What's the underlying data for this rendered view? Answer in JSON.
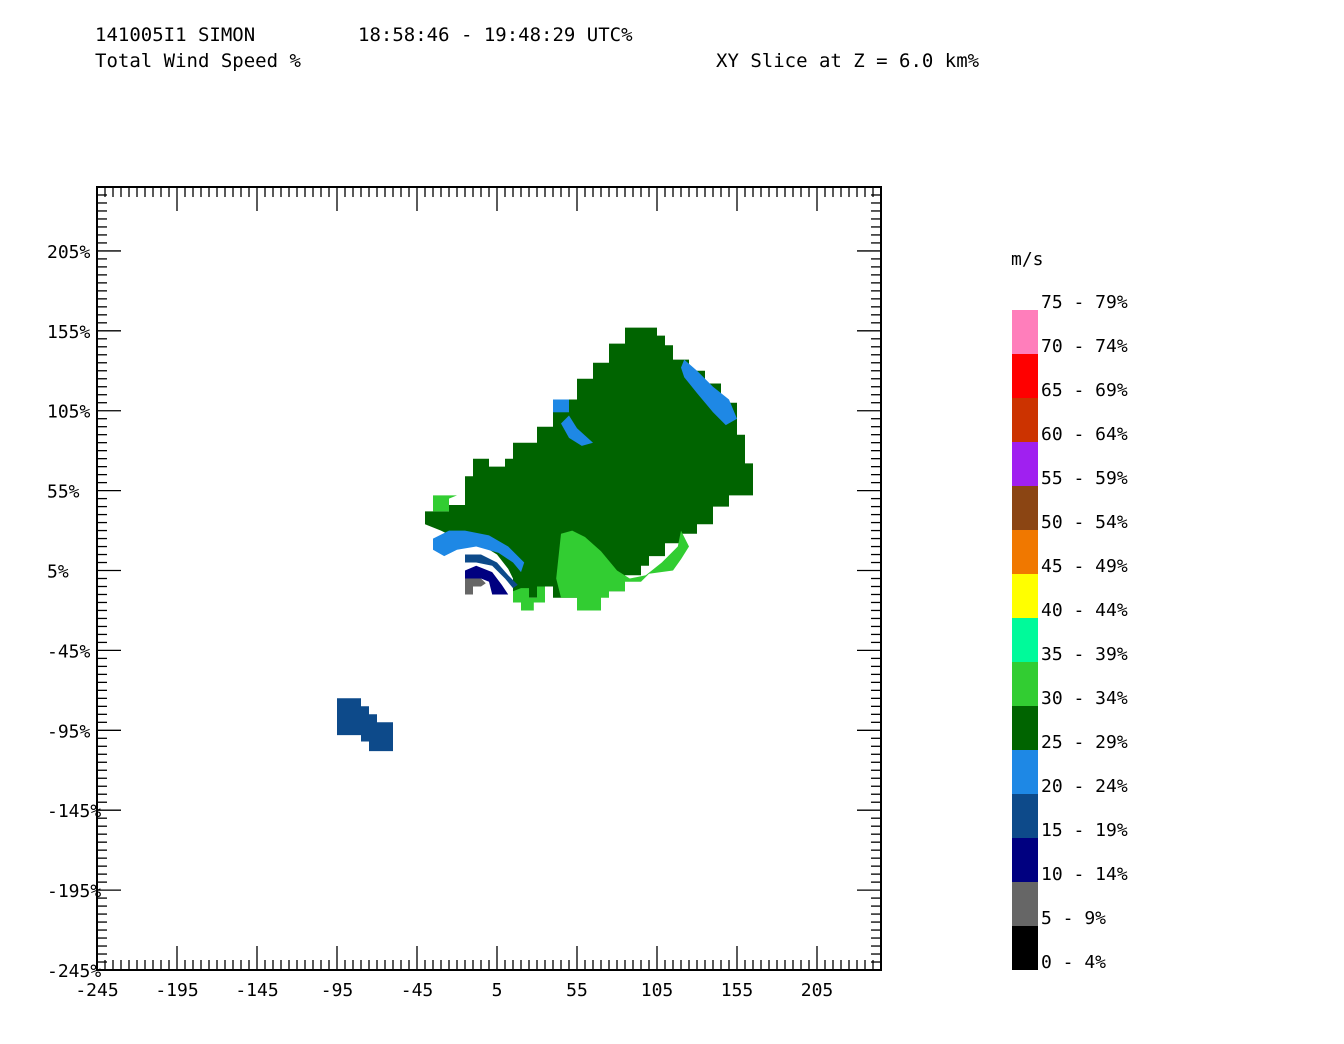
{
  "header": {
    "flight_id": "141005I1 SIMON",
    "time_range": "18:58:46 - 19:48:29 UTC%",
    "field_name": "Total Wind Speed %",
    "slice_label": "XY Slice at Z = 6.0 km%"
  },
  "chart_data": {
    "type": "heatmap",
    "title": "Total Wind Speed %",
    "xlabel": "",
    "ylabel": "",
    "xlim": [
      -245,
      245
    ],
    "ylim": [
      -245,
      245
    ],
    "x_ticks": [
      "-245",
      "-195",
      "-145",
      "-95",
      "-45",
      "5",
      "55",
      "105",
      "155",
      "205"
    ],
    "y_ticks": [
      "205%",
      "155%",
      "105%",
      "55%",
      "5%",
      "-45%",
      "-95%",
      "-145%",
      "-195%",
      "-245%"
    ],
    "x_tick_values": [
      -245,
      -195,
      -145,
      -95,
      -45,
      5,
      55,
      105,
      155,
      205
    ],
    "y_tick_values": [
      205,
      155,
      105,
      55,
      5,
      -45,
      -95,
      -145,
      -195,
      -245
    ],
    "grid": false,
    "legend": {
      "title": "m/s",
      "placement": "right",
      "bins": [
        {
          "label": "75 - 79%",
          "color": "#ff7ebb"
        },
        {
          "label": "70 - 74%",
          "color": "#ff0000"
        },
        {
          "label": "65 - 69%",
          "color": "#cc3300"
        },
        {
          "label": "60 - 64%",
          "color": "#a020f0"
        },
        {
          "label": "55 - 59%",
          "color": "#8b4513"
        },
        {
          "label": "50 - 54%",
          "color": "#f07800"
        },
        {
          "label": "45 - 49%",
          "color": "#ffff00"
        },
        {
          "label": "40 - 44%",
          "color": "#00fa9a"
        },
        {
          "label": "35 - 39%",
          "color": "#32cd32"
        },
        {
          "label": "30 - 34%",
          "color": "#006400"
        },
        {
          "label": "25 - 29%",
          "color": "#1e88e5"
        },
        {
          "label": "20 - 24%",
          "color": "#0d4a8a"
        },
        {
          "label": "15 - 19%",
          "color": "#000080"
        },
        {
          "label": "10 - 14%",
          "color": "#666666"
        },
        {
          "label": "5 - 9%",
          "color": "#000000"
        },
        {
          "label": "0 - 4%",
          "color": null
        }
      ]
    },
    "regions": [
      {
        "name": "main-25-29",
        "color": "#006400",
        "points": [
          [
            -40,
            34
          ],
          [
            -40,
            42
          ],
          [
            -25,
            42
          ],
          [
            -25,
            46
          ],
          [
            -15,
            46
          ],
          [
            -15,
            64
          ],
          [
            -10,
            64
          ],
          [
            -10,
            75
          ],
          [
            0,
            75
          ],
          [
            0,
            70
          ],
          [
            10,
            70
          ],
          [
            10,
            75
          ],
          [
            15,
            75
          ],
          [
            15,
            85
          ],
          [
            30,
            85
          ],
          [
            30,
            95
          ],
          [
            40,
            95
          ],
          [
            40,
            106
          ],
          [
            45,
            106
          ],
          [
            45,
            112
          ],
          [
            55,
            112
          ],
          [
            55,
            125
          ],
          [
            65,
            125
          ],
          [
            65,
            135
          ],
          [
            75,
            135
          ],
          [
            75,
            147
          ],
          [
            85,
            147
          ],
          [
            85,
            157
          ],
          [
            105,
            157
          ],
          [
            105,
            152
          ],
          [
            110,
            152
          ],
          [
            110,
            146
          ],
          [
            115,
            146
          ],
          [
            115,
            137
          ],
          [
            125,
            137
          ],
          [
            125,
            130
          ],
          [
            135,
            130
          ],
          [
            135,
            122
          ],
          [
            145,
            122
          ],
          [
            145,
            110
          ],
          [
            155,
            110
          ],
          [
            155,
            90
          ],
          [
            160,
            90
          ],
          [
            160,
            72
          ],
          [
            165,
            72
          ],
          [
            165,
            52
          ],
          [
            150,
            52
          ],
          [
            150,
            45
          ],
          [
            140,
            45
          ],
          [
            140,
            34
          ],
          [
            130,
            34
          ],
          [
            130,
            28
          ],
          [
            120,
            28
          ],
          [
            120,
            22
          ],
          [
            110,
            22
          ],
          [
            110,
            14
          ],
          [
            100,
            14
          ],
          [
            100,
            8
          ],
          [
            95,
            8
          ],
          [
            95,
            2
          ],
          [
            85,
            2
          ],
          [
            85,
            -8
          ],
          [
            70,
            -8
          ],
          [
            70,
            -20
          ],
          [
            55,
            -20
          ],
          [
            55,
            -12
          ],
          [
            40,
            -12
          ],
          [
            40,
            -5
          ],
          [
            30,
            -5
          ],
          [
            30,
            -12
          ],
          [
            15,
            -12
          ],
          [
            15,
            0
          ],
          [
            12,
            6
          ],
          [
            5,
            15
          ],
          [
            -8,
            23
          ],
          [
            -20,
            25
          ],
          [
            -30,
            30
          ]
        ]
      },
      {
        "name": "green-30-34-left",
        "color": "#32cd32",
        "points": [
          [
            -35,
            52
          ],
          [
            -35,
            42
          ],
          [
            -25,
            42
          ],
          [
            -25,
            50
          ],
          [
            -20,
            52
          ]
        ]
      },
      {
        "name": "green-30-34-south",
        "color": "#32cd32",
        "points": [
          [
            45,
            28
          ],
          [
            52,
            30
          ],
          [
            60,
            26
          ],
          [
            70,
            17
          ],
          [
            80,
            5
          ],
          [
            88,
            0
          ],
          [
            98,
            2
          ],
          [
            108,
            10
          ],
          [
            118,
            20
          ],
          [
            120,
            30
          ],
          [
            125,
            20
          ],
          [
            120,
            12
          ],
          [
            115,
            5
          ],
          [
            100,
            3
          ],
          [
            95,
            -2
          ],
          [
            85,
            -2
          ],
          [
            85,
            -8
          ],
          [
            75,
            -8
          ],
          [
            75,
            -12
          ],
          [
            70,
            -12
          ],
          [
            70,
            -20
          ],
          [
            55,
            -20
          ],
          [
            55,
            -12
          ],
          [
            45,
            -12
          ],
          [
            42,
            0
          ]
        ]
      },
      {
        "name": "green-30-34-bottom",
        "color": "#32cd32",
        "points": [
          [
            20,
            -6
          ],
          [
            25,
            -6
          ],
          [
            25,
            -12
          ],
          [
            30,
            -12
          ],
          [
            30,
            -5
          ],
          [
            35,
            -5
          ],
          [
            35,
            -15
          ],
          [
            28,
            -15
          ],
          [
            28,
            -20
          ],
          [
            20,
            -20
          ],
          [
            20,
            -15
          ],
          [
            15,
            -15
          ],
          [
            15,
            -8
          ]
        ]
      },
      {
        "name": "blue-20-24-arc",
        "color": "#1e88e5",
        "points": [
          [
            -35,
            25
          ],
          [
            -25,
            30
          ],
          [
            -15,
            30
          ],
          [
            0,
            27
          ],
          [
            12,
            20
          ],
          [
            22,
            10
          ],
          [
            20,
            4
          ],
          [
            15,
            10
          ],
          [
            6,
            16
          ],
          [
            -8,
            20
          ],
          [
            -20,
            18
          ],
          [
            -28,
            14
          ],
          [
            -35,
            18
          ]
        ]
      },
      {
        "name": "blue-20-24-ne",
        "color": "#1e88e5",
        "points": [
          [
            122,
            137
          ],
          [
            130,
            130
          ],
          [
            140,
            120
          ],
          [
            150,
            112
          ],
          [
            155,
            100
          ],
          [
            148,
            96
          ],
          [
            140,
            104
          ],
          [
            130,
            116
          ],
          [
            122,
            126
          ],
          [
            120,
            132
          ]
        ]
      },
      {
        "name": "blue-20-24-nw",
        "color": "#1e88e5",
        "points": [
          [
            45,
            97
          ],
          [
            50,
            102
          ],
          [
            55,
            94
          ],
          [
            65,
            85
          ],
          [
            58,
            83
          ],
          [
            50,
            88
          ]
        ]
      },
      {
        "name": "blue-20-24-corner",
        "color": "#1e88e5",
        "points": [
          [
            40,
            112
          ],
          [
            40,
            104
          ],
          [
            50,
            104
          ],
          [
            50,
            112
          ]
        ]
      },
      {
        "name": "blue-15-19",
        "color": "#0d4a8a",
        "points": [
          [
            -15,
            15
          ],
          [
            -5,
            15
          ],
          [
            5,
            10
          ],
          [
            12,
            2
          ],
          [
            18,
            -4
          ],
          [
            15,
            -6
          ],
          [
            10,
            0
          ],
          [
            2,
            8
          ],
          [
            -8,
            10
          ],
          [
            -15,
            10
          ]
        ]
      },
      {
        "name": "navy-10-14",
        "color": "#000080",
        "points": [
          [
            -15,
            5
          ],
          [
            -8,
            8
          ],
          [
            2,
            4
          ],
          [
            8,
            -4
          ],
          [
            12,
            -10
          ],
          [
            2,
            -10
          ],
          [
            0,
            -2
          ],
          [
            -5,
            0
          ],
          [
            -15,
            0
          ]
        ]
      },
      {
        "name": "gray-5-9",
        "color": "#666666",
        "points": [
          [
            -15,
            0
          ],
          [
            -5,
            0
          ],
          [
            -2,
            -3
          ],
          [
            -5,
            -5
          ],
          [
            -10,
            -5
          ],
          [
            -10,
            -10
          ],
          [
            -15,
            -10
          ]
        ]
      },
      {
        "name": "blue-15-19-sw",
        "color": "#0d4a8a",
        "points": [
          [
            -95,
            -75
          ],
          [
            -80,
            -75
          ],
          [
            -80,
            -80
          ],
          [
            -75,
            -80
          ],
          [
            -75,
            -85
          ],
          [
            -70,
            -85
          ],
          [
            -70,
            -90
          ],
          [
            -60,
            -90
          ],
          [
            -60,
            -108
          ],
          [
            -75,
            -108
          ],
          [
            -75,
            -102
          ],
          [
            -80,
            -102
          ],
          [
            -80,
            -98
          ],
          [
            -95,
            -98
          ]
        ]
      }
    ]
  }
}
